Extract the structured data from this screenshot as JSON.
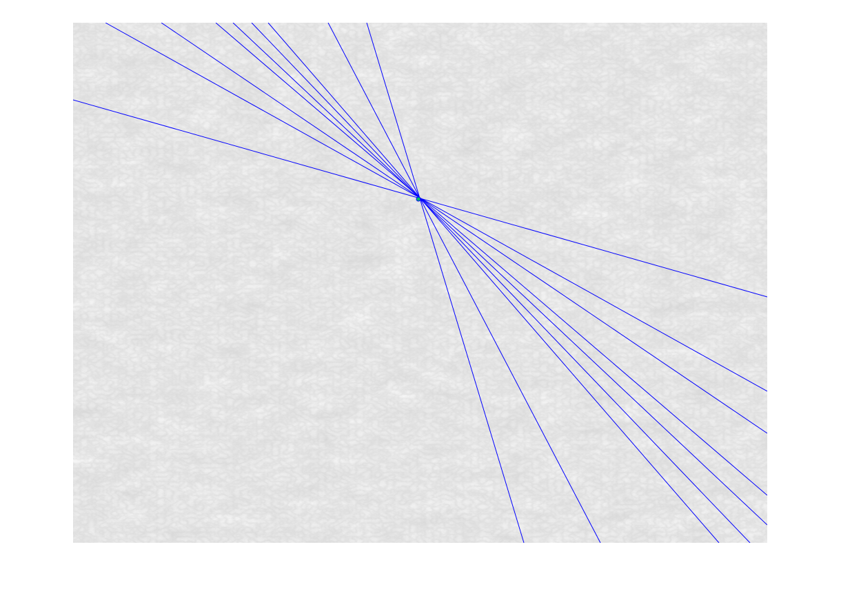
{
  "figure": {
    "background_color": "#ffffff",
    "image": {
      "description_kind": "grayscale rock/snow texture photograph",
      "base_color": "#e9e9e9",
      "speckle_color": "#bdbdbd"
    },
    "overlay": {
      "line_color": "#0000ff",
      "line_count": 11,
      "marker_color": "#00c060",
      "marker_label": ""
    }
  }
}
